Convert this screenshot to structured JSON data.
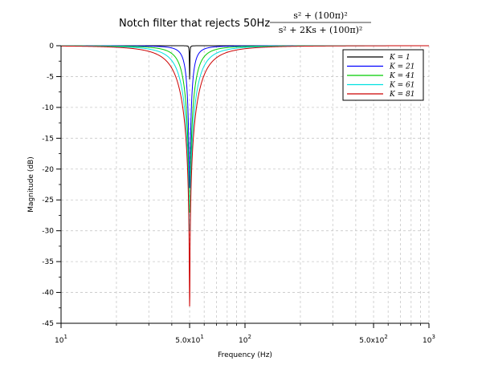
{
  "chart_data": {
    "type": "line",
    "title": "Notch filter that rejects 50Hz",
    "title_formula": {
      "numerator": "s² + (100π)²",
      "denominator": "s² + 2Ks + (100π)²"
    },
    "xlabel": "Frequency (Hz)",
    "ylabel": "Magnitude (dB)",
    "x_scale": "log",
    "xlim": [
      10,
      1000
    ],
    "ylim": [
      -45,
      0
    ],
    "grid": true,
    "legend_position": "top-right",
    "x_ticks": [
      {
        "value": 10,
        "base": "10",
        "exp": "1"
      },
      {
        "value": 50,
        "base": "5.0x10",
        "exp": "1"
      },
      {
        "value": 100,
        "base": "10",
        "exp": "2"
      },
      {
        "value": 500,
        "base": "5.0x10",
        "exp": "2"
      },
      {
        "value": 1000,
        "base": "10",
        "exp": "3"
      }
    ],
    "y_ticks": [
      "0",
      "-5",
      "-10",
      "-15",
      "-20",
      "-25",
      "-30",
      "-35",
      "-40",
      "-45"
    ],
    "series": [
      {
        "name": "K = 1",
        "K": 1,
        "color": "#000000",
        "min_db": -5.4
      },
      {
        "name": "K = 21",
        "K": 21,
        "color": "#0000ff",
        "min_db": -23
      },
      {
        "name": "K = 41",
        "K": 41,
        "color": "#00cc00",
        "min_db": -27
      },
      {
        "name": "K = 61",
        "K": 61,
        "color": "#00e0e0",
        "min_db": -30
      },
      {
        "name": "K = 81",
        "K": 81,
        "color": "#cc0000",
        "min_db": -42.2
      }
    ]
  }
}
